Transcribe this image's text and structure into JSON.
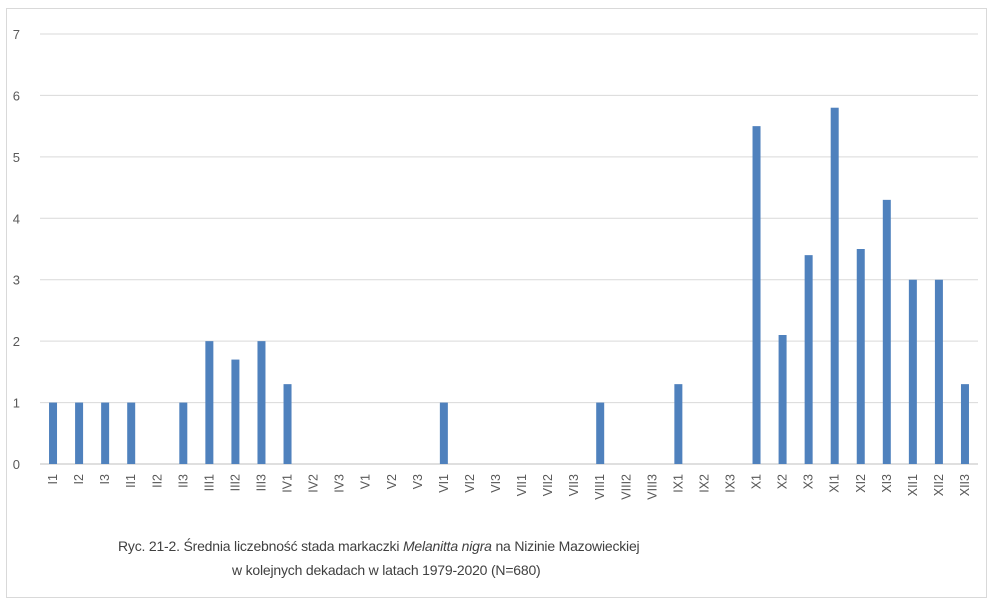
{
  "chart_data": {
    "type": "bar",
    "categories": [
      "I1",
      "I2",
      "I3",
      "II1",
      "II2",
      "II3",
      "III1",
      "III2",
      "III3",
      "IV1",
      "IV2",
      "IV3",
      "V1",
      "V2",
      "V3",
      "VI1",
      "VI2",
      "VI3",
      "VII1",
      "VII2",
      "VII3",
      "VIII1",
      "VIII2",
      "VIII3",
      "IX1",
      "IX2",
      "IX3",
      "X1",
      "X2",
      "X3",
      "XI1",
      "XI2",
      "XI3",
      "XII1",
      "XII2",
      "XII3"
    ],
    "values": [
      1,
      1,
      1,
      1,
      0,
      1,
      2,
      1.7,
      2,
      1.3,
      0,
      0,
      0,
      0,
      0,
      1,
      0,
      0,
      0,
      0,
      0,
      1,
      0,
      0,
      1.3,
      0,
      0,
      5.5,
      2.1,
      3.4,
      5.8,
      3.5,
      4.3,
      3,
      3,
      1.3
    ],
    "ylim": [
      0,
      7
    ],
    "yticks": [
      0,
      1,
      2,
      3,
      4,
      5,
      6,
      7
    ],
    "grid": true,
    "bar_color": "#4f81bd",
    "grid_color": "#d9d9d9",
    "axis_color": "#bfbfbf",
    "text_color": "#595959"
  },
  "caption": {
    "line1_before": "Ryc. 21-2. Średnia liczebność stada markaczki ",
    "line1_species": "Melanitta nigra",
    "line1_after": " na Nizinie Mazowieckiej",
    "line2": "w kolejnych dekadach w latach 1979-2020 (N=680)"
  }
}
